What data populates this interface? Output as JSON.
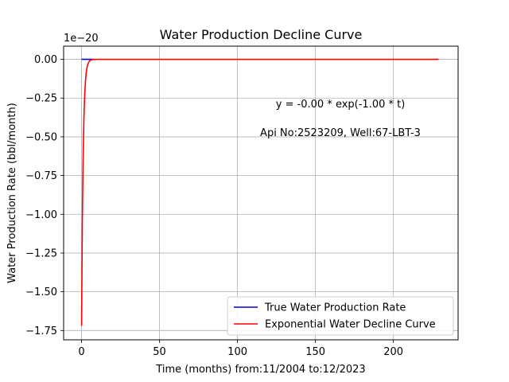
{
  "chart_data": {
    "type": "line",
    "title": "Water Production Decline Curve",
    "xlabel": "Time (months) from:11/2004 to:12/2023",
    "ylabel": "Water Production Rate (bbl/month)",
    "y_offset_text": "1e−20",
    "xlim": [
      -11.5,
      241.5
    ],
    "ylim": [
      -1.81,
      0.085
    ],
    "y_scale_multiplier": 1e-20,
    "xticks": [
      0,
      50,
      100,
      150,
      200
    ],
    "xtick_labels": [
      "0",
      "50",
      "100",
      "150",
      "200"
    ],
    "yticks": [
      0.0,
      -0.25,
      -0.5,
      -0.75,
      -1.0,
      -1.25,
      -1.5,
      -1.75
    ],
    "ytick_labels": [
      "0.00",
      "−0.25",
      "−0.50",
      "−0.75",
      "−1.00",
      "−1.25",
      "−1.50",
      "−1.75"
    ],
    "grid": true,
    "legend_position": "lower-right",
    "annotations": [
      "y = -0.00 * exp(-1.00 * t)",
      "Api No:2523209, Well:67-LBT-3"
    ],
    "series": [
      {
        "name": "True Water Production Rate",
        "color": "#0000cc",
        "x": [
          0,
          1,
          2,
          3,
          4,
          5,
          6,
          8
        ],
        "y": [
          0,
          0,
          0,
          0,
          0,
          0,
          0,
          0
        ]
      },
      {
        "name": "Exponential Water Decline Curve",
        "color": "#ff0000",
        "x": [
          0,
          0.5,
          1,
          1.5,
          2,
          2.5,
          3,
          3.5,
          4,
          5,
          6,
          7,
          8,
          10,
          12,
          15,
          20,
          30,
          50,
          100,
          150,
          200,
          229
        ],
        "y": [
          -1.72,
          -1.043,
          -0.633,
          -0.384,
          -0.233,
          -0.141,
          -0.0856,
          -0.0519,
          -0.0315,
          -0.0116,
          -0.0043,
          -0.0016,
          -0.0006,
          -8e-05,
          -1e-05,
          0,
          0,
          0,
          0,
          0,
          0,
          0,
          0
        ]
      }
    ]
  }
}
